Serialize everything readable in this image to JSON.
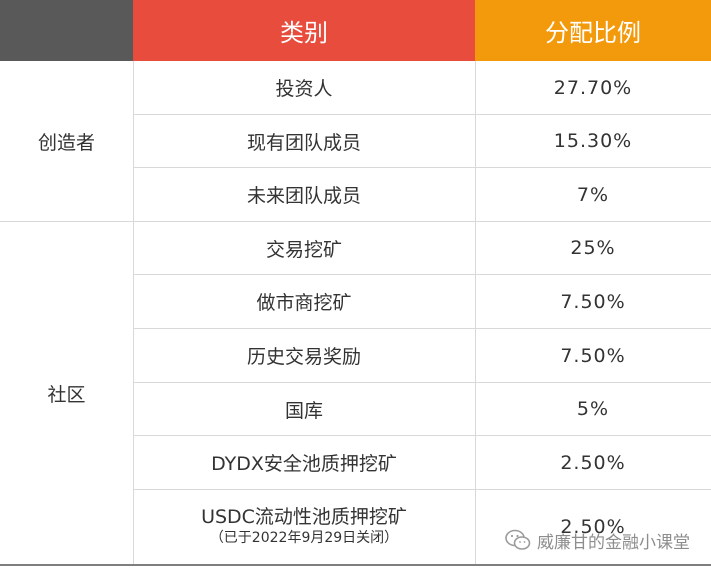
{
  "header": {
    "category": "类别",
    "ratio": "分配比例"
  },
  "groups": {
    "creators": "创造者",
    "community": "社区"
  },
  "rows": [
    {
      "category": "投资人",
      "ratio": "27.70%"
    },
    {
      "category": "现有团队成员",
      "ratio": "15.30%"
    },
    {
      "category": "未来团队成员",
      "ratio": "7%"
    },
    {
      "category": "交易挖矿",
      "ratio": "25%"
    },
    {
      "category": "做市商挖矿",
      "ratio": "7.50%"
    },
    {
      "category": "历史交易奖励",
      "ratio": "7.50%"
    },
    {
      "category": "国库",
      "ratio": "5%"
    },
    {
      "category": "DYDX安全池质押挖矿",
      "ratio": "2.50%"
    },
    {
      "category": "USDC流动性池质押挖矿",
      "note": "（已于2022年9月29日关闭）",
      "ratio": "2.50%"
    }
  ],
  "watermark": {
    "text": "威廉甘的金融小课堂",
    "icon": "wechat-icon"
  },
  "colors": {
    "header_blank": "#595959",
    "header_category": "#e84c3d",
    "header_ratio": "#f39a0c"
  }
}
